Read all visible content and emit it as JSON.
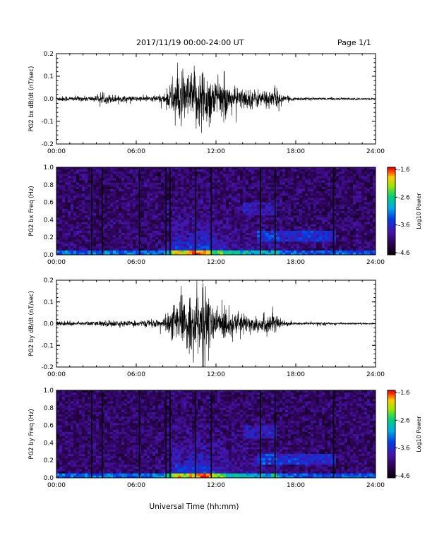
{
  "header": {
    "title": "2017/11/19   00:00-24:00 UT",
    "page": "Page 1/1"
  },
  "colors": {
    "trace": "#000000",
    "axis": "#000000",
    "background": "#ffffff"
  },
  "xaxis": {
    "label": "Universal Time (hh:mm)",
    "ticks": [
      "00:00",
      "06:00",
      "12:00",
      "18:00",
      "24:00"
    ],
    "range_hours": [
      0,
      24
    ]
  },
  "panels": [
    {
      "ylabel": "PG2 bx dB/dt (nT/sec)",
      "kind": "waveform"
    },
    {
      "ylabel": "PG2 bx Freq (Hz)",
      "kind": "spectrogram"
    },
    {
      "ylabel": "PG2 by dB/dt (nT/sec)",
      "kind": "waveform"
    },
    {
      "ylabel": "PG2 by Freq (Hz)",
      "kind": "spectrogram"
    }
  ],
  "colorbar": {
    "label": "Log10 Power",
    "ticks": [
      "-1.6",
      "-2.6",
      "-3.6",
      "-4.6"
    ],
    "range": [
      -4.6,
      -1.6
    ]
  },
  "chart_data": [
    {
      "type": "line",
      "ylabel": "PG2 bx dB/dt (nT/sec)",
      "xlabel": "Universal Time (hh:mm)",
      "xlim": [
        0,
        24
      ],
      "ylim": [
        -0.2,
        0.2
      ],
      "yticks": [
        "0.2",
        "0.1",
        "0.0",
        "-0.1",
        "-0.2"
      ],
      "envelope": {
        "x_hours": [
          0,
          1,
          2,
          3,
          4,
          5,
          6,
          7,
          8,
          8.5,
          9,
          9.5,
          10,
          10.5,
          11,
          11.5,
          12,
          12.5,
          13,
          14,
          15,
          16,
          16.5,
          17,
          18,
          19,
          20,
          21,
          22,
          23,
          24
        ],
        "amplitude": [
          0.013,
          0.012,
          0.012,
          0.015,
          0.022,
          0.014,
          0.012,
          0.014,
          0.02,
          0.055,
          0.14,
          0.11,
          0.12,
          0.14,
          0.16,
          0.13,
          0.08,
          0.1,
          0.06,
          0.05,
          0.045,
          0.04,
          0.055,
          0.015,
          0.008,
          0.006,
          0.006,
          0.005,
          0.005,
          0.004,
          0.004
        ]
      }
    },
    {
      "type": "heatmap",
      "ylabel": "PG2 bx Freq (Hz)",
      "xlabel": "Universal Time (hh:mm)",
      "xlim": [
        0,
        24
      ],
      "ylim": [
        0.0,
        1.0
      ],
      "yticks": [
        "1.0",
        "0.8",
        "0.6",
        "0.4",
        "0.2",
        "0.0"
      ],
      "zlim": [
        -4.6,
        -1.6
      ],
      "zlabel": "Log10 Power"
    },
    {
      "type": "line",
      "ylabel": "PG2 by dB/dt (nT/sec)",
      "xlabel": "Universal Time (hh:mm)",
      "xlim": [
        0,
        24
      ],
      "ylim": [
        -0.2,
        0.2
      ],
      "yticks": [
        "0.2",
        "0.1",
        "0.0",
        "-0.1",
        "-0.2"
      ],
      "envelope": {
        "x_hours": [
          0,
          1,
          2,
          3,
          4,
          5,
          6,
          7,
          8,
          8.5,
          9,
          9.5,
          10,
          10.5,
          11,
          11.5,
          12,
          12.5,
          13,
          14,
          15,
          16,
          16.5,
          17,
          18,
          19,
          20,
          21,
          22,
          23,
          24
        ],
        "amplitude": [
          0.012,
          0.01,
          0.01,
          0.012,
          0.018,
          0.012,
          0.014,
          0.016,
          0.02,
          0.06,
          0.11,
          0.1,
          0.13,
          0.14,
          0.2,
          0.13,
          0.07,
          0.1,
          0.06,
          0.045,
          0.045,
          0.05,
          0.05,
          0.012,
          0.007,
          0.006,
          0.006,
          0.005,
          0.005,
          0.004,
          0.004
        ]
      }
    },
    {
      "type": "heatmap",
      "ylabel": "PG2 by Freq (Hz)",
      "xlabel": "Universal Time (hh:mm)",
      "xlim": [
        0,
        24
      ],
      "ylim": [
        0.0,
        1.0
      ],
      "yticks": [
        "1.0",
        "0.8",
        "0.6",
        "0.4",
        "0.2",
        "0.0"
      ],
      "zlim": [
        -4.6,
        -1.6
      ],
      "zlabel": "Log10 Power"
    }
  ]
}
